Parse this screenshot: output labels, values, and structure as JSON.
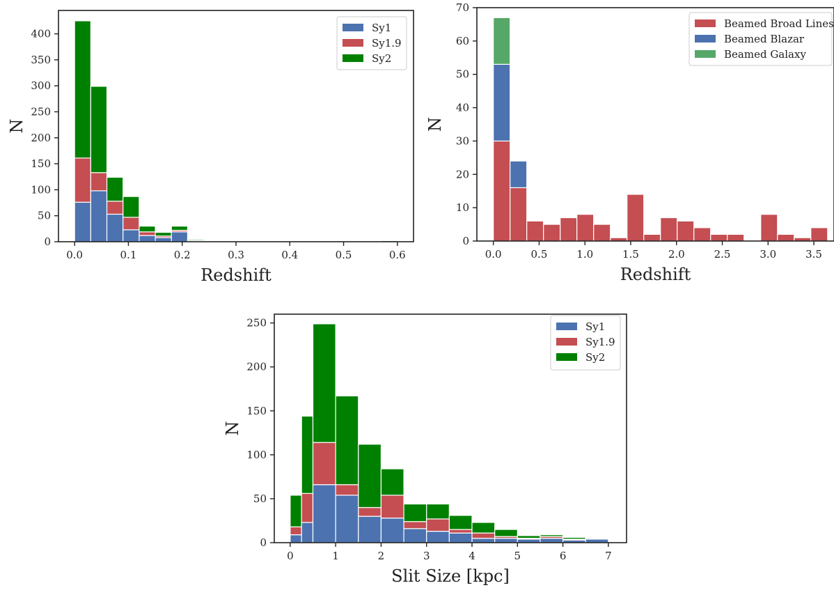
{
  "colors": {
    "sy1": "#4c72b0",
    "sy19": "#c44e52",
    "sy2": "#008000",
    "beamed_galaxy": "#55a868",
    "axis": "#222222",
    "background": "#ffffff"
  },
  "chart_data": [
    {
      "id": "top-left",
      "type": "bar",
      "stacked": true,
      "title": "",
      "xlabel": "Redshift",
      "ylabel": "N",
      "xlim": [
        -0.03,
        0.63
      ],
      "ylim": [
        0,
        445
      ],
      "xticks": [
        0.0,
        0.1,
        0.2,
        0.3,
        0.4,
        0.5,
        0.6
      ],
      "xtick_labels": [
        "0.0",
        "0.1",
        "0.2",
        "0.3",
        "0.4",
        "0.5",
        "0.6"
      ],
      "yticks": [
        0,
        50,
        100,
        150,
        200,
        250,
        300,
        350,
        400
      ],
      "ytick_labels": [
        "0",
        "50",
        "100",
        "150",
        "200",
        "250",
        "300",
        "350",
        "400"
      ],
      "grid": false,
      "legend_position": "top-right",
      "bin_edges": [
        0.0,
        0.03,
        0.06,
        0.09,
        0.12,
        0.15,
        0.18,
        0.21,
        0.24,
        0.27,
        0.3,
        0.33,
        0.36,
        0.39,
        0.42,
        0.45,
        0.48,
        0.51,
        0.54,
        0.57,
        0.6
      ],
      "series": [
        {
          "name": "Sy1",
          "color": "#4c72b0",
          "values": [
            76,
            98,
            53,
            23,
            12,
            8,
            19,
            1,
            0,
            0,
            0,
            0,
            0,
            0,
            0,
            0,
            0,
            0,
            0,
            0
          ]
        },
        {
          "name": "Sy1.9",
          "color": "#c44e52",
          "values": [
            85,
            35,
            25,
            24,
            7,
            3,
            3,
            1,
            0,
            0,
            0,
            0,
            0,
            0,
            0,
            0,
            0,
            0,
            0,
            0
          ]
        },
        {
          "name": "Sy2",
          "color": "#008000",
          "values": [
            264,
            166,
            46,
            40,
            11,
            7,
            8,
            2,
            0,
            0,
            0,
            0,
            0,
            0,
            0,
            0,
            0,
            0,
            0,
            2
          ]
        }
      ]
    },
    {
      "id": "top-right",
      "type": "bar",
      "stacked": true,
      "title": "",
      "xlabel": "Redshift",
      "ylabel": "N",
      "xlim": [
        -0.18,
        3.72
      ],
      "ylim": [
        0,
        70
      ],
      "xticks": [
        0.0,
        0.5,
        1.0,
        1.5,
        2.0,
        2.5,
        3.0,
        3.5
      ],
      "xtick_labels": [
        "0.0",
        "0.5",
        "1.0",
        "1.5",
        "2.0",
        "2.5",
        "3.0",
        "3.5"
      ],
      "yticks": [
        0,
        10,
        20,
        30,
        40,
        50,
        60,
        70
      ],
      "ytick_labels": [
        "0",
        "10",
        "20",
        "30",
        "40",
        "50",
        "60",
        "70"
      ],
      "grid": false,
      "legend_position": "top-right",
      "bin_edges": [
        0.0,
        0.1825,
        0.365,
        0.5475,
        0.73,
        0.9125,
        1.095,
        1.2775,
        1.46,
        1.6425,
        1.825,
        2.0075,
        2.19,
        2.3725,
        2.555,
        2.7375,
        2.92,
        3.1025,
        3.285,
        3.4675,
        3.65
      ],
      "series": [
        {
          "name": "Beamed Broad Lines",
          "color": "#c44e52",
          "values": [
            30,
            16,
            6,
            5,
            7,
            8,
            5,
            1,
            14,
            2,
            7,
            6,
            4,
            2,
            2,
            0,
            8,
            2,
            1,
            4
          ]
        },
        {
          "name": "Beamed Blazar",
          "color": "#4c72b0",
          "values": [
            23,
            8,
            0,
            0,
            0,
            0,
            0,
            0,
            0,
            0,
            0,
            0,
            0,
            0,
            0,
            0,
            0,
            0,
            0,
            0
          ]
        },
        {
          "name": "Beamed Galaxy",
          "color": "#55a868",
          "values": [
            14,
            0,
            0,
            0,
            0,
            0,
            0,
            0,
            0,
            0,
            0,
            0,
            0,
            0,
            0,
            0,
            0,
            0,
            0,
            0
          ]
        }
      ]
    },
    {
      "id": "bottom",
      "type": "bar",
      "stacked": true,
      "title": "",
      "xlabel": "Slit Size [kpc]",
      "ylabel": "N",
      "xlim": [
        -0.35,
        7.4
      ],
      "ylim": [
        0,
        260
      ],
      "xticks": [
        0,
        1,
        2,
        3,
        4,
        5,
        6,
        7
      ],
      "xtick_labels": [
        "0",
        "1",
        "2",
        "3",
        "4",
        "5",
        "6",
        "7"
      ],
      "yticks": [
        0,
        50,
        100,
        150,
        200,
        250
      ],
      "ytick_labels": [
        "0",
        "50",
        "100",
        "150",
        "200",
        "250"
      ],
      "grid": false,
      "legend_position": "top-right",
      "bin_edges": [
        0.0,
        0.25,
        0.5,
        1.0,
        1.5,
        2.0,
        2.5,
        3.0,
        3.5,
        4.0,
        4.5,
        5.0,
        5.5,
        6.0,
        6.5,
        7.0
      ],
      "series": [
        {
          "name": "Sy1",
          "color": "#4c72b0",
          "values": [
            9,
            23,
            66,
            54,
            30,
            28,
            16,
            13,
            11,
            5,
            5,
            4,
            5,
            3,
            4
          ]
        },
        {
          "name": "Sy1.9",
          "color": "#c44e52",
          "values": [
            9,
            33,
            48,
            12,
            10,
            26,
            8,
            14,
            4,
            6,
            2,
            1,
            2,
            1,
            0
          ]
        },
        {
          "name": "Sy2",
          "color": "#008000",
          "values": [
            36,
            88,
            135,
            101,
            72,
            30,
            20,
            17,
            16,
            12,
            8,
            3,
            2,
            2,
            0
          ]
        }
      ]
    }
  ]
}
